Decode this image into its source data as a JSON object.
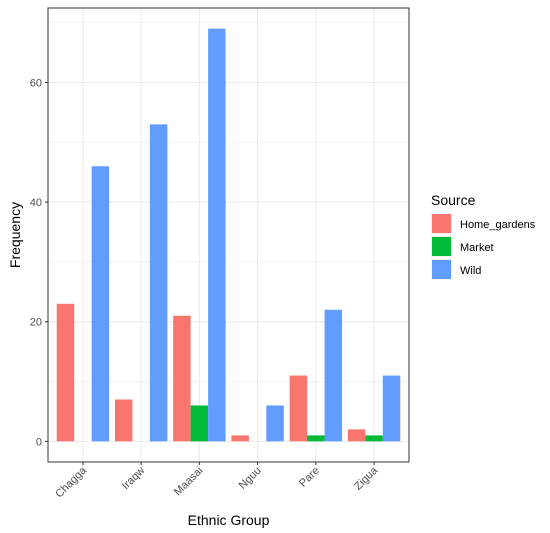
{
  "chart_data": {
    "type": "bar",
    "title": "",
    "xlabel": "Ethnic Group",
    "ylabel": "Frequency",
    "categories": [
      "Chagga",
      "Iraqw",
      "Maasai",
      "Nguu",
      "Pare",
      "Zigua"
    ],
    "series": [
      {
        "name": "Home_gardens",
        "color": "#F8766D",
        "values": [
          23,
          7,
          21,
          1,
          11,
          2
        ]
      },
      {
        "name": "Market",
        "color": "#00BA38",
        "values": [
          0,
          0,
          6,
          0,
          1,
          1
        ]
      },
      {
        "name": "Wild",
        "color": "#619CFF",
        "values": [
          46,
          53,
          69,
          6,
          22,
          11
        ]
      }
    ],
    "ylim": [
      -3.45,
      72.45
    ],
    "yticks": [
      0,
      20,
      40,
      60
    ],
    "grid": true,
    "legend": {
      "title": "Source",
      "position": "right"
    }
  }
}
